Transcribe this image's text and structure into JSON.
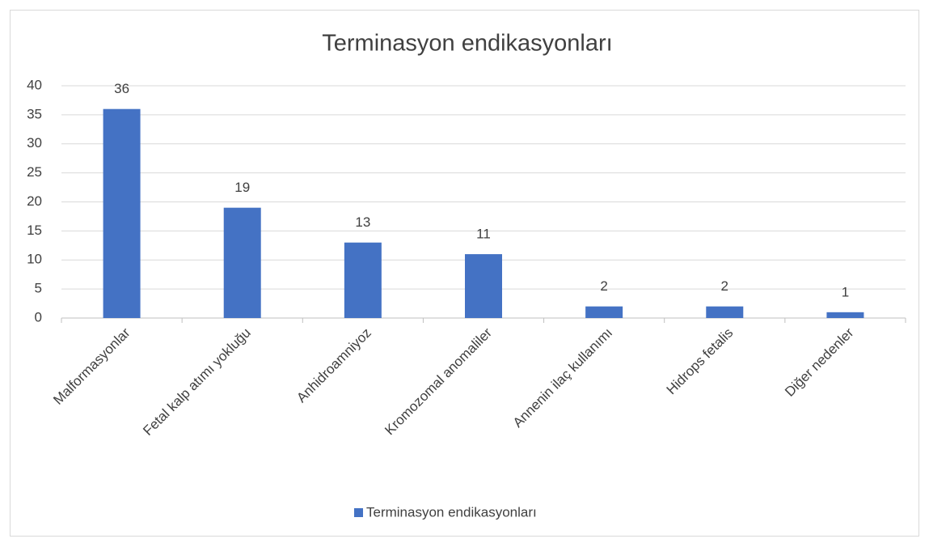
{
  "chart_data": {
    "type": "bar",
    "title": "Terminasyon endikasyonları",
    "categories": [
      "Malformasyonlar",
      "Fetal kalp atımı yokluğu",
      "Anhidroamniyoz",
      "Kromozomal anomaliler",
      "Annenin ilaç kullanımı",
      "Hidrops fetalis",
      "Diğer nedenler"
    ],
    "series": [
      {
        "name": "Terminasyon endikasyonları",
        "color": "#4472c4",
        "values": [
          36,
          19,
          13,
          11,
          2,
          2,
          1
        ]
      }
    ],
    "ylim": [
      0,
      40
    ],
    "yticks": [
      0,
      5,
      10,
      15,
      20,
      25,
      30,
      35,
      40
    ],
    "grid": true,
    "legend": "bottom"
  }
}
